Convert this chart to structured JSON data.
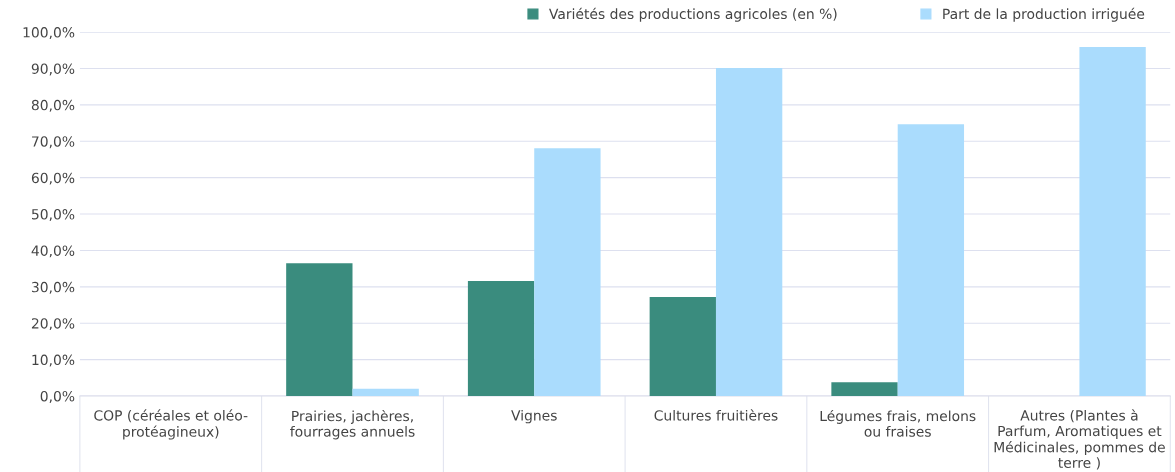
{
  "chart_data": {
    "type": "bar",
    "categories": [
      "COP (céréales et oléo-protéagineux)",
      "Prairies, jachères, fourrages annuels",
      "Vignes",
      "Cultures fruitières",
      "Légumes frais, melons ou fraises",
      "Autres (Plantes à Parfum, Aromatiques et Médicinales, pommes de terre )"
    ],
    "series": [
      {
        "name": "Variétés des productions agricoles (en %)",
        "color": "#3a8c7e",
        "values": [
          0,
          36.5,
          31.6,
          27.2,
          3.8,
          0
        ]
      },
      {
        "name": "Part de la production irriguée",
        "color": "#aadcfd",
        "values": [
          0,
          2.0,
          68.1,
          90.1,
          74.7,
          95.9
        ]
      }
    ],
    "ylim": [
      0,
      100
    ],
    "yticks": [
      {
        "value": 0,
        "label": "0,0%"
      },
      {
        "value": 10,
        "label": "10,0%"
      },
      {
        "value": 20,
        "label": "20,0%"
      },
      {
        "value": 30,
        "label": "30,0%"
      },
      {
        "value": 40,
        "label": "40,0%"
      },
      {
        "value": 50,
        "label": "50,0%"
      },
      {
        "value": 60,
        "label": "60,0%"
      },
      {
        "value": 70,
        "label": "70,0%"
      },
      {
        "value": 80,
        "label": "80,0%"
      },
      {
        "value": 90,
        "label": "90,0%"
      },
      {
        "value": 100,
        "label": "100,0%"
      }
    ],
    "grid": "y",
    "legend": "top right"
  }
}
